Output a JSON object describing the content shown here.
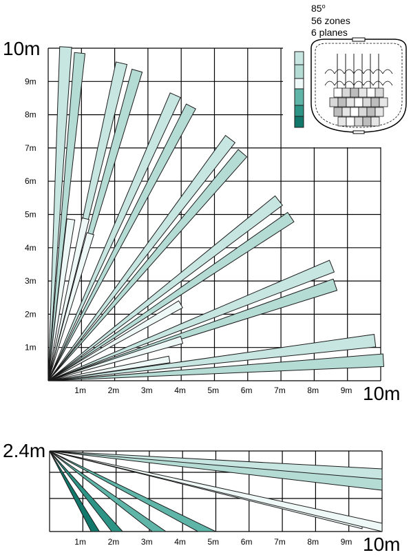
{
  "top_view": {
    "range_label_y": "10m",
    "range_label_x": "10m",
    "y_ticks": [
      "1m",
      "2m",
      "3m",
      "4m",
      "5m",
      "6m",
      "7m",
      "8m",
      "9m"
    ],
    "x_ticks": [
      "1m",
      "2m",
      "3m",
      "4m",
      "5m",
      "6m",
      "7m",
      "8m",
      "9m"
    ]
  },
  "side_view": {
    "height_label": "2.4m",
    "range_label_x": "10m",
    "x_ticks": [
      "1m",
      "2m",
      "3m",
      "4m",
      "5m",
      "6m",
      "7m",
      "8m",
      "9m"
    ]
  },
  "info": {
    "angle": "85",
    "angle_unit": "o",
    "zones": "56 zones",
    "planes": "6 planes"
  },
  "colors": {
    "plane1": "#c7e6e1",
    "plane2": "#b4dcd5",
    "plane3": "#eef8f6",
    "plane4": "#5fb5a8",
    "plane5": "#2d9486",
    "plane6": "#12786b",
    "line": "#1a1a1a"
  },
  "legend_icon": "plane-color-legend",
  "sensor_icon": "detector-lens-icon"
}
